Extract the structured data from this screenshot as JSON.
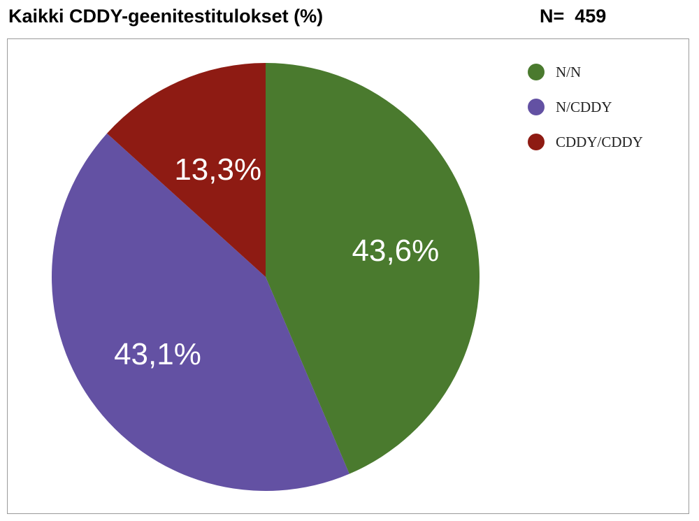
{
  "title": "Kaikki CDDY-geenitestitulokset (%)",
  "count_label": "N=  459",
  "chart_data": {
    "type": "pie",
    "title": "Kaikki CDDY-geenitestitulokset (%)",
    "slices": [
      {
        "label": "N/N",
        "value": 43.6,
        "display": "43,6%",
        "color": "#4a7a2e"
      },
      {
        "label": "N/CDDY",
        "value": 43.1,
        "display": "43,1%",
        "color": "#6351a3"
      },
      {
        "label": "CDDY/CDDY",
        "value": 13.3,
        "display": "13,3%",
        "color": "#8e1b13"
      }
    ],
    "start_angle": "12 o'clock",
    "direction": "clockwise",
    "legend_position": "top-right"
  }
}
